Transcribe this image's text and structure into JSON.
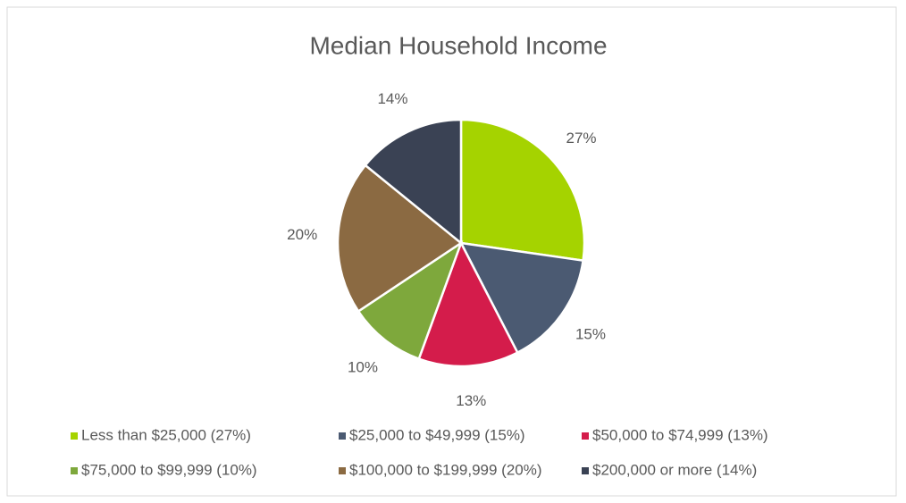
{
  "chart_data": {
    "type": "pie",
    "title": "Median Household Income",
    "categories": [
      "Less than $25,000 (27%)",
      "$25,000 to $49,999 (15%)",
      "$50,000 to $74,999 (13%)",
      "$75,000 to $99,999 (10%)",
      "$100,000 to $199,999 (20%)",
      "$200,000 or more (14%)"
    ],
    "values": [
      27,
      15,
      13,
      10,
      20,
      14
    ],
    "value_labels": [
      "27%",
      "15%",
      "13%",
      "10%",
      "20%",
      "14%"
    ],
    "colors": [
      "#a5d300",
      "#4b5a72",
      "#d41c4b",
      "#7ea83c",
      "#8b6a42",
      "#3a4254"
    ],
    "legend": "bottom"
  }
}
